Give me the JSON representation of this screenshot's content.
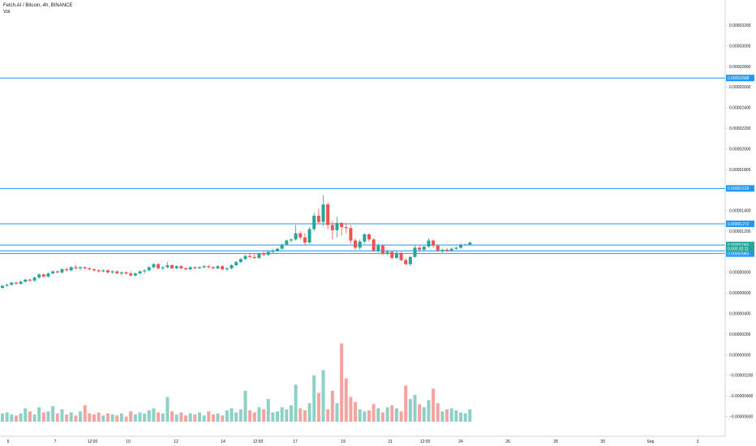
{
  "header": {
    "symbol_line": "Fetch.AI / Bitcoin, 4h, BINANCE",
    "volume_label": "Vol"
  },
  "colors": {
    "up": "#26a69a",
    "down": "#ef5350",
    "vol_up": "#8fd0c6",
    "vol_down": "#f3a3a0",
    "level_line": "#2196f3",
    "last_price": "#26a69a",
    "axis_border": "#d1d4dc"
  },
  "price_axis": {
    "ticks": [
      "0.00003200",
      "0.00003000",
      "0.00002800",
      "0.00002600",
      "0.00002400",
      "0.00002200",
      "0.00002000",
      "0.00001800",
      "0.00001600",
      "0.00001400",
      "0.00001200",
      "0.00001000",
      "0.00000800",
      "0.00000600",
      "0.00000400",
      "0.00000200",
      "0.00000000",
      "−0.00000200",
      "−0.00000400",
      "−0.00000600"
    ],
    "level_tags": [
      "0.00002688",
      "0.00001616",
      "0.00001272",
      "0.00001066",
      "0.00001009",
      "0.00000983"
    ],
    "last_price_tag": "0.000",
    "countdown": "32:11"
  },
  "time_axis": {
    "labels": [
      "5",
      "7",
      "12:00",
      "10",
      "12",
      "14",
      "12:00",
      "17",
      "19",
      "21",
      "12:00",
      "24",
      "26",
      "28",
      "30",
      "Sep",
      "3"
    ]
  },
  "chart_data": {
    "type": "candlestick",
    "interval": "4h",
    "y_min": -6.5e-06,
    "y_max": 3.32e-05,
    "horizontal_levels": [
      2.688e-05,
      1.616e-05,
      1.272e-05,
      1.066e-05,
      1.009e-05,
      9.83e-06
    ],
    "candles_ohlc": [
      [
        6.5e-06,
        6.8e-06,
        6.4e-06,
        6.7e-06
      ],
      [
        6.7e-06,
        6.9e-06,
        6.6e-06,
        6.8e-06
      ],
      [
        6.8e-06,
        7.1e-06,
        6.7e-06,
        7e-06
      ],
      [
        7e-06,
        7.1e-06,
        6.8e-06,
        6.9e-06
      ],
      [
        6.9e-06,
        7.2e-06,
        6.8e-06,
        7.1e-06
      ],
      [
        7.1e-06,
        7.4e-06,
        7e-06,
        7.3e-06
      ],
      [
        7.3e-06,
        7.4e-06,
        7.1e-06,
        7.2e-06
      ],
      [
        7.2e-06,
        7.6e-06,
        7.1e-06,
        7.5e-06
      ],
      [
        7.5e-06,
        7.9e-06,
        7.4e-06,
        7.8e-06
      ],
      [
        7.8e-06,
        7.9e-06,
        7.5e-06,
        7.6e-06
      ],
      [
        7.6e-06,
        8e-06,
        7.5e-06,
        7.9e-06
      ],
      [
        7.9e-06,
        8.2e-06,
        7.8e-06,
        8.1e-06
      ],
      [
        8.1e-06,
        8.2e-06,
        7.9e-06,
        8e-06
      ],
      [
        8e-06,
        8.4e-06,
        7.9e-06,
        8.3e-06
      ],
      [
        8.3e-06,
        8.5e-06,
        8.1e-06,
        8.2e-06
      ],
      [
        8.2e-06,
        8.6e-06,
        8.1e-06,
        8.5e-06
      ],
      [
        8.5e-06,
        8.7e-06,
        8.3e-06,
        8.4e-06
      ],
      [
        8.4e-06,
        8.6e-06,
        8.2e-06,
        8.5e-06
      ],
      [
        8.5e-06,
        8.6e-06,
        8.3e-06,
        8.4e-06
      ],
      [
        8.4e-06,
        8.5e-06,
        8.2e-06,
        8.3e-06
      ],
      [
        8.3e-06,
        8.4e-06,
        8.1e-06,
        8.2e-06
      ],
      [
        8.2e-06,
        8.3e-06,
        8e-06,
        8.1e-06
      ],
      [
        8.1e-06,
        8.3e-06,
        8e-06,
        8.2e-06
      ],
      [
        8.2e-06,
        8.3e-06,
        7.9e-06,
        8e-06
      ],
      [
        8e-06,
        8.2e-06,
        7.9e-06,
        8.1e-06
      ],
      [
        8.1e-06,
        8.2e-06,
        7.8e-06,
        7.9e-06
      ],
      [
        7.9e-06,
        8.1e-06,
        7.7e-06,
        8e-06
      ],
      [
        8e-06,
        8.1e-06,
        7.8e-06,
        7.9e-06
      ],
      [
        7.9e-06,
        8.1e-06,
        7.6e-06,
        7.7e-06
      ],
      [
        7.7e-06,
        8e-06,
        7.6e-06,
        7.9e-06
      ],
      [
        7.9e-06,
        8.2e-06,
        7.8e-06,
        8.1e-06
      ],
      [
        8.1e-06,
        8.3e-06,
        7.9e-06,
        8.2e-06
      ],
      [
        8.2e-06,
        8.6e-06,
        8.1e-06,
        8.5e-06
      ],
      [
        8.5e-06,
        8.9e-06,
        8.4e-06,
        8.8e-06
      ],
      [
        8.8e-06,
        8.9e-06,
        8.3e-06,
        8.4e-06
      ],
      [
        8.4e-06,
        8.6e-06,
        8.2e-06,
        8.5e-06
      ],
      [
        8.5e-06,
        9e-06,
        8.4e-06,
        8.7e-06
      ],
      [
        8.7e-06,
        8.8e-06,
        8.3e-06,
        8.4e-06
      ],
      [
        8.4e-06,
        8.7e-06,
        8.3e-06,
        8.6e-06
      ],
      [
        8.6e-06,
        8.7e-06,
        8.3e-06,
        8.4e-06
      ],
      [
        8.4e-06,
        8.5e-06,
        8.2e-06,
        8.3e-06
      ],
      [
        8.3e-06,
        8.6e-06,
        8.2e-06,
        8.5e-06
      ],
      [
        8.5e-06,
        8.6e-06,
        8.3e-06,
        8.4e-06
      ],
      [
        8.4e-06,
        8.6e-06,
        8.3e-06,
        8.5e-06
      ],
      [
        8.5e-06,
        8.7e-06,
        8.4e-06,
        8.6e-06
      ],
      [
        8.6e-06,
        8.7e-06,
        8.4e-06,
        8.5e-06
      ],
      [
        8.5e-06,
        8.6e-06,
        8.3e-06,
        8.4e-06
      ],
      [
        8.4e-06,
        8.7e-06,
        8.3e-06,
        8.6e-06
      ],
      [
        8.6e-06,
        8.7e-06,
        8.2e-06,
        8.3e-06
      ],
      [
        8.3e-06,
        8.5e-06,
        8.1e-06,
        8.4e-06
      ],
      [
        8.4e-06,
        8.8e-06,
        8.3e-06,
        8.7e-06
      ],
      [
        8.7e-06,
        9.1e-06,
        8.6e-06,
        9e-06
      ],
      [
        9e-06,
        9.4e-06,
        8.9e-06,
        9.3e-06
      ],
      [
        9.3e-06,
        9.7e-06,
        9.2e-06,
        9.6e-06
      ],
      [
        9.6e-06,
        9.9e-06,
        9.4e-06,
        9.5e-06
      ],
      [
        9.5e-06,
        9.8e-06,
        9.3e-06,
        9.4e-06
      ],
      [
        9.4e-06,
        9.9e-06,
        9.3e-06,
        9.8e-06
      ],
      [
        9.8e-06,
        1e-05,
        9.6e-06,
        9.7e-06
      ],
      [
        9.7e-06,
        1.01e-05,
        9.6e-06,
        1e-05
      ],
      [
        1e-05,
        1.03e-05,
        9.8e-06,
        1.01e-05
      ],
      [
        1.01e-05,
        1.04e-05,
        1e-05,
        1.03e-05
      ],
      [
        1.03e-05,
        1.08e-05,
        1.02e-05,
        1.07e-05
      ],
      [
        1.07e-05,
        1.12e-05,
        1.06e-05,
        1.11e-05
      ],
      [
        1.11e-05,
        1.13e-05,
        1.09e-05,
        1.12e-05
      ],
      [
        1.12e-05,
        1.26e-05,
        1.11e-05,
        1.18e-05
      ],
      [
        1.18e-05,
        1.2e-05,
        1.12e-05,
        1.14e-05
      ],
      [
        1.14e-05,
        1.18e-05,
        1.06e-05,
        1.09e-05
      ],
      [
        1.09e-05,
        1.24e-05,
        1.08e-05,
        1.22e-05
      ],
      [
        1.22e-05,
        1.38e-05,
        1.2e-05,
        1.35e-05
      ],
      [
        1.35e-05,
        1.42e-05,
        1.27e-05,
        1.29e-05
      ],
      [
        1.29e-05,
        1.55e-05,
        1.25e-05,
        1.46e-05
      ],
      [
        1.46e-05,
        1.48e-05,
        1.22e-05,
        1.26e-05
      ],
      [
        1.26e-05,
        1.3e-05,
        1.12e-05,
        1.21e-05
      ],
      [
        1.21e-05,
        1.34e-05,
        1.14e-05,
        1.28e-05
      ],
      [
        1.28e-05,
        1.29e-05,
        1.16e-05,
        1.24e-05
      ],
      [
        1.24e-05,
        1.28e-05,
        1.18e-05,
        1.23e-05
      ],
      [
        1.23e-05,
        1.26e-05,
        1.08e-05,
        1.11e-05
      ],
      [
        1.11e-05,
        1.13e-05,
        1.02e-05,
        1.04e-05
      ],
      [
        1.04e-05,
        1.12e-05,
        1.02e-05,
        1.1e-05
      ],
      [
        1.1e-05,
        1.18e-05,
        1.08e-05,
        1.17e-05
      ],
      [
        1.17e-05,
        1.18e-05,
        1.1e-05,
        1.12e-05
      ],
      [
        1.12e-05,
        1.13e-05,
        1e-05,
        1.01e-05
      ],
      [
        1.01e-05,
        1.08e-05,
        9.9e-06,
        1.06e-05
      ],
      [
        1.06e-05,
        1.07e-05,
        9.7e-06,
        9.8e-06
      ],
      [
        9.8e-06,
        1.02e-05,
        9.7e-06,
        1e-05
      ],
      [
        1e-05,
        1.01e-05,
        9.3e-06,
        9.4e-06
      ],
      [
        9.4e-06,
        1.01e-05,
        9.3e-06,
        9.9e-06
      ],
      [
        9.9e-06,
        1e-05,
        9.1e-06,
        9.2e-06
      ],
      [
        9.2e-06,
        9.4e-06,
        8.7e-06,
        8.8e-06
      ],
      [
        8.8e-06,
        9.6e-06,
        8.6e-06,
        9.5e-06
      ],
      [
        9.5e-06,
        1.06e-05,
        9.4e-06,
        1.04e-05
      ],
      [
        1.04e-05,
        1.06e-05,
        1e-05,
        1.02e-05
      ],
      [
        1.02e-05,
        1.06e-05,
        1.01e-05,
        1.05e-05
      ],
      [
        1.05e-05,
        1.13e-05,
        1.04e-05,
        1.11e-05
      ],
      [
        1.11e-05,
        1.12e-05,
        1.04e-05,
        1.06e-05
      ],
      [
        1.06e-05,
        1.07e-05,
        1e-05,
        1.01e-05
      ],
      [
        1.01e-05,
        1.03e-05,
        9.9e-06,
        1.02e-05
      ],
      [
        1.02e-05,
        1.04e-05,
        1e-05,
        1.01e-05
      ],
      [
        1.01e-05,
        1.04e-05,
        1e-05,
        1.03e-05
      ],
      [
        1.03e-05,
        1.05e-05,
        1.02e-05,
        1.04e-05
      ],
      [
        1.04e-05,
        1.08e-05,
        1.03e-05,
        1.07e-05
      ],
      [
        1.07e-05,
        1.08e-05,
        1.06e-05,
        1.07e-05
      ],
      [
        1.07e-05,
        1.1e-05,
        1.06e-05,
        1.09e-05
      ]
    ],
    "volumes": [
      8e-07,
      9e-07,
      7e-07,
      6e-07,
      8e-07,
      1.3e-06,
      1e-06,
      7e-07,
      1.4e-06,
      9e-07,
      1e-06,
      1.5e-06,
      8e-07,
      1.2e-06,
      7e-07,
      9e-07,
      6e-07,
      1e-06,
      1.6e-06,
      8e-07,
      7e-07,
      9e-07,
      6e-07,
      8e-07,
      7e-07,
      6e-07,
      8e-07,
      5e-07,
      1e-06,
      7e-07,
      9e-07,
      8e-07,
      1.1e-06,
      1.3e-06,
      9e-07,
      8e-07,
      2.4e-06,
      1e-06,
      7e-07,
      9e-07,
      6e-07,
      8e-07,
      7e-07,
      9e-07,
      6e-07,
      1e-06,
      7e-07,
      8e-07,
      6e-07,
      1.1e-06,
      1.3e-06,
      9e-07,
      1.2e-06,
      3e-06,
      1.1e-06,
      9e-07,
      1.4e-06,
      1.2e-06,
      2.2e-06,
      9e-07,
      1e-06,
      1.4e-06,
      1.2e-06,
      1.6e-06,
      3.6e-06,
      1.3e-06,
      1.1e-06,
      1.8e-06,
      4.5e-06,
      2.8e-06,
      5e-06,
      1.2e-06,
      3e-06,
      1.8e-06,
      7.6e-06,
      4.2e-06,
      2.4e-06,
      1.9e-06,
      1.2e-06,
      1e-06,
      1.1e-06,
      1.7e-06,
      1.3e-06,
      9e-07,
      1.4e-06,
      1.6e-06,
      1.3e-06,
      1e-06,
      3.5e-06,
      2.2e-06,
      2.6e-06,
      1.7e-06,
      1.4e-06,
      2.1e-06,
      3.2e-06,
      1.8e-06,
      1e-06,
      1.2e-06,
      1.3e-06,
      1.1e-06,
      9e-07,
      8e-07,
      1.2e-06
    ]
  }
}
